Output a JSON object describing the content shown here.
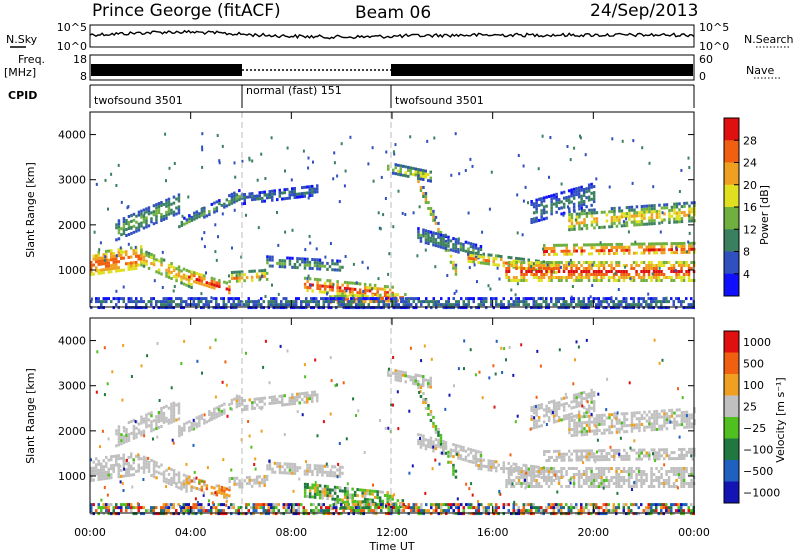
{
  "header": {
    "station": "Prince George (fitACF)",
    "beam": "Beam 06",
    "date": "24/Sep/2013"
  },
  "aux_panels": {
    "nsky_label": "N.Sky",
    "nsky_ticks": [
      "10^5",
      "10^0"
    ],
    "nsearch_label": "N.Search",
    "nsearch_ticks": [
      "10^5",
      "10^0"
    ],
    "freq_label": "Freq.",
    "freq_unit": "[MHz]",
    "freq_ticks": [
      "18",
      "8"
    ],
    "nave_label": "Nave",
    "nave_ticks": [
      "60",
      "0"
    ],
    "cpid_label": "CPID",
    "cpid_segments": [
      {
        "label": "twofsound 3501",
        "start": 0,
        "end": 6
      },
      {
        "label": "normal (fast) 151",
        "start": 6,
        "end": 12
      },
      {
        "label": "twofsound 3501",
        "start": 12,
        "end": 24
      }
    ]
  },
  "chart_data": [
    {
      "type": "heatmap",
      "title": "",
      "ylabel": "Slant Range [km]",
      "xlabel": "",
      "xlim": [
        0,
        24
      ],
      "ylim": [
        180,
        4500
      ],
      "yticks": [
        "1000",
        "2000",
        "3000",
        "4000"
      ],
      "colorbar": {
        "label": "Power [dB]",
        "range": [
          0,
          32
        ],
        "ticks": [
          "4",
          "8",
          "12",
          "16",
          "20",
          "24",
          "28"
        ],
        "colors": [
          "#1010ff",
          "#3050c0",
          "#3a8060",
          "#70b040",
          "#e0e020",
          "#f0a020",
          "#f06010",
          "#e01010"
        ]
      }
    },
    {
      "type": "heatmap",
      "title": "",
      "ylabel": "Slant Range [km]",
      "xlabel": "Time UT",
      "xlim": [
        0,
        24
      ],
      "ylim": [
        180,
        4500
      ],
      "yticks": [
        "1000",
        "2000",
        "3000",
        "4000"
      ],
      "xticks": [
        "00:00",
        "04:00",
        "08:00",
        "12:00",
        "16:00",
        "20:00",
        "00:00"
      ],
      "colorbar": {
        "label": "Velocity [m s⁻¹]",
        "ticks": [
          "1000",
          "500",
          "100",
          "25",
          "−25",
          "−100",
          "−500",
          "−1000"
        ],
        "colors": [
          "#1414b4",
          "#2060c0",
          "#207840",
          "#50c020",
          "#c0c0c0",
          "#f0a020",
          "#f06010",
          "#e01010"
        ]
      }
    }
  ]
}
